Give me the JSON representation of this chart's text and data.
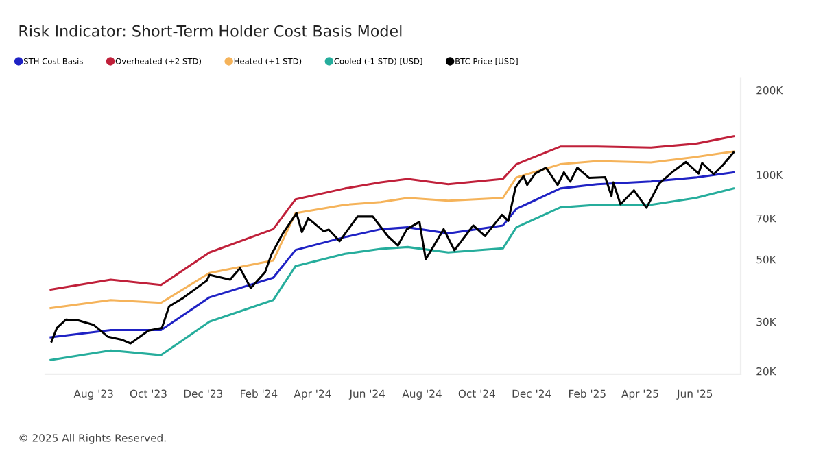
{
  "chart_data": {
    "type": "line",
    "title": "Risk Indicator: Short-Term Holder Cost Basis Model",
    "annotations": [
      "© 2025 All Rights Reserved."
    ],
    "log": "y",
    "ylim": [
      19500,
      220000
    ],
    "yticks": [
      {
        "value": 20000,
        "label": "20K"
      },
      {
        "value": 30000,
        "label": "30K"
      },
      {
        "value": 50000,
        "label": "50K"
      },
      {
        "value": 70000,
        "label": "70K"
      },
      {
        "value": 100000,
        "label": "100K"
      },
      {
        "value": 200000,
        "label": "200K"
      }
    ],
    "xlim": [
      "2023-06-08",
      "2025-07-22"
    ],
    "xticks": [
      {
        "value": "2023-08-01",
        "label": "Aug '23"
      },
      {
        "value": "2023-10-01",
        "label": "Oct '23"
      },
      {
        "value": "2023-12-01",
        "label": "Dec '23"
      },
      {
        "value": "2024-02-01",
        "label": "Feb '24"
      },
      {
        "value": "2024-04-01",
        "label": "Apr '24"
      },
      {
        "value": "2024-06-01",
        "label": "Jun '24"
      },
      {
        "value": "2024-08-01",
        "label": "Aug '24"
      },
      {
        "value": "2024-10-01",
        "label": "Oct '24"
      },
      {
        "value": "2024-12-01",
        "label": "Dec '24"
      },
      {
        "value": "2025-02-01",
        "label": "Feb '25"
      },
      {
        "value": "2025-04-01",
        "label": "Apr '25"
      },
      {
        "value": "2025-06-01",
        "label": "Jun '25"
      }
    ],
    "x": [
      "2023-06-14",
      "2023-08-20",
      "2023-10-15",
      "2023-12-08",
      "2024-02-17",
      "2024-03-13",
      "2024-05-07",
      "2024-06-16",
      "2024-07-16",
      "2024-08-30",
      "2024-10-30",
      "2024-11-14",
      "2025-01-02",
      "2025-02-12",
      "2025-04-13",
      "2025-06-02",
      "2025-07-14"
    ],
    "legend": "top left",
    "grid": false,
    "line_style": "solid",
    "marker": "none",
    "series": [
      {
        "name": "STH Cost Basis",
        "color": "#1f22c4",
        "values": [
          26400,
          28000,
          28000,
          36600,
          43000,
          54000,
          60000,
          64000,
          65000,
          61800,
          66000,
          75600,
          89400,
          92500,
          94600,
          97800,
          102000
        ]
      },
      {
        "name": "Overheated (+2 STD)",
        "color": "#c0203a",
        "values": [
          39000,
          42300,
          40500,
          52900,
          64000,
          81800,
          89400,
          94000,
          96700,
          92500,
          96700,
          109000,
          126000,
          126000,
          125000,
          129000,
          137000
        ]
      },
      {
        "name": "Heated (+1 STD)",
        "color": "#f5b35a",
        "values": [
          33500,
          35800,
          35000,
          44700,
          49500,
          73000,
          78200,
          80000,
          82700,
          80900,
          82700,
          97800,
          109000,
          111800,
          110600,
          115700,
          121000
        ]
      },
      {
        "name": "Cooled (-1 STD) [USD]",
        "color": "#26ad9c",
        "values": [
          21900,
          23700,
          22800,
          30000,
          35800,
          47300,
          52300,
          54500,
          55300,
          52900,
          54700,
          65000,
          76500,
          78200,
          78200,
          82700,
          89400
        ]
      },
      {
        "name": "BTC Price [USD]",
        "color": "#000000",
        "x": [
          "2023-06-15",
          "2023-06-21",
          "2023-07-01",
          "2023-07-15",
          "2023-08-01",
          "2023-08-17",
          "2023-09-01",
          "2023-09-11",
          "2023-10-01",
          "2023-10-16",
          "2023-10-24",
          "2023-11-09",
          "2023-12-05",
          "2023-12-08",
          "2023-12-31",
          "2024-01-11",
          "2024-01-23",
          "2024-02-08",
          "2024-02-15",
          "2024-02-28",
          "2024-03-14",
          "2024-03-20",
          "2024-03-27",
          "2024-04-13",
          "2024-04-19",
          "2024-05-01",
          "2024-05-21",
          "2024-06-07",
          "2024-06-24",
          "2024-07-05",
          "2024-07-15",
          "2024-07-29",
          "2024-08-05",
          "2024-08-25",
          "2024-09-06",
          "2024-09-27",
          "2024-10-10",
          "2024-10-29",
          "2024-11-05",
          "2024-11-13",
          "2024-11-22",
          "2024-11-26",
          "2024-12-05",
          "2024-12-17",
          "2024-12-30",
          "2025-01-06",
          "2025-01-13",
          "2025-01-21",
          "2025-02-03",
          "2025-02-21",
          "2025-02-28",
          "2025-03-02",
          "2025-03-10",
          "2025-03-25",
          "2025-04-08",
          "2025-04-22",
          "2025-05-08",
          "2025-05-22",
          "2025-06-05",
          "2025-06-09",
          "2025-06-22",
          "2025-07-03",
          "2025-07-11",
          "2025-07-14"
        ],
        "values": [
          25500,
          28500,
          30500,
          30300,
          29200,
          26500,
          25900,
          25100,
          27900,
          28500,
          34000,
          36500,
          42000,
          44000,
          42300,
          46500,
          39500,
          45000,
          52000,
          62000,
          73000,
          62500,
          70000,
          63000,
          63800,
          58000,
          71000,
          71000,
          60300,
          56000,
          64000,
          68000,
          50000,
          64000,
          53900,
          66000,
          60500,
          72000,
          68500,
          90000,
          99000,
          92000,
          101000,
          106000,
          92000,
          102000,
          94500,
          106000,
          97500,
          98000,
          84000,
          94000,
          78500,
          88000,
          76300,
          93000,
          103000,
          111000,
          101000,
          110000,
          100500,
          109000,
          117000,
          120000
        ]
      }
    ]
  }
}
